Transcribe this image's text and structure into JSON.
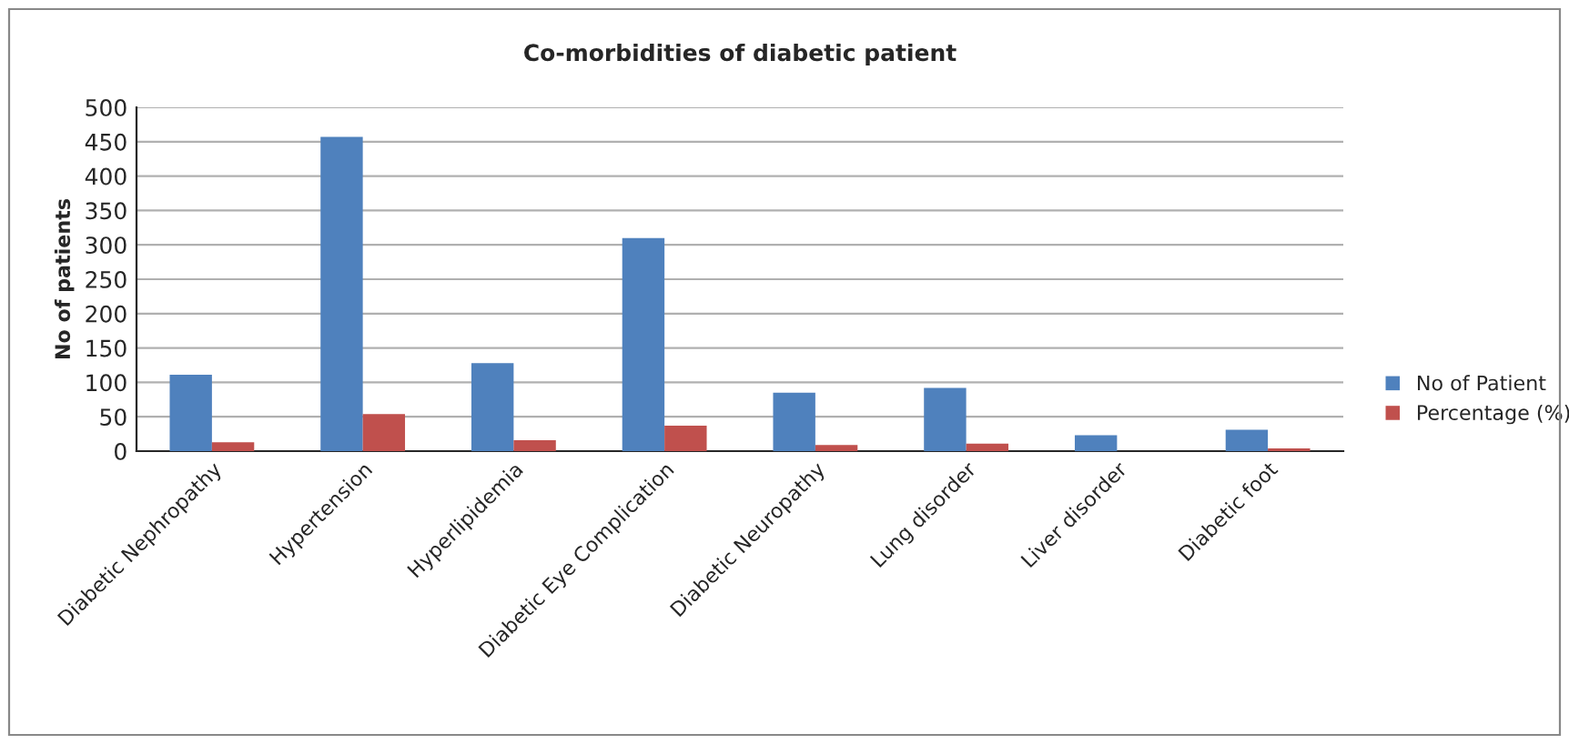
{
  "chart_data": {
    "type": "bar",
    "title": "Co-morbidities of diabetic patient",
    "ylabel": "No of patients",
    "categories": [
      "Diabetic Nephropathy",
      "Hypertension",
      "Hyperlipidemia",
      "Diabetic Eye Complication",
      "Diabetic Neuropathy",
      "Lung disorder",
      "Liver disorder",
      "Diabetic foot"
    ],
    "series": [
      {
        "name": "No of Patient",
        "color": "#4f81bd",
        "values": [
          111,
          457,
          128,
          310,
          85,
          92,
          23,
          31
        ]
      },
      {
        "name": "Percentage (%)",
        "color": "#c0504d",
        "values": [
          13,
          54,
          16,
          37,
          9,
          11,
          null,
          4
        ]
      }
    ],
    "ylim": [
      0,
      500
    ],
    "yticks": [
      0,
      50,
      100,
      150,
      200,
      250,
      300,
      350,
      400,
      450,
      500
    ],
    "grid": "y",
    "legend": "right"
  }
}
